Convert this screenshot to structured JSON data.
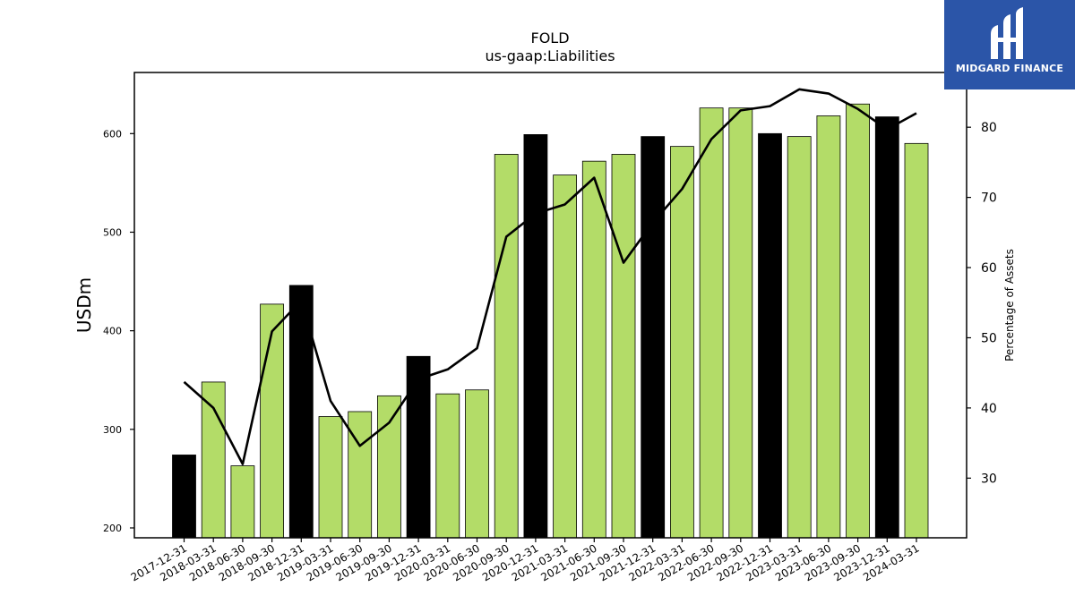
{
  "brand": {
    "name": "MIDGARD FINANCE",
    "bg_color": "#2b55a8"
  },
  "chart_data": {
    "type": "bar",
    "title": "FOLD",
    "subtitle": "us-gaap:Liabilities",
    "ylabel": "USDm",
    "y2label": "Percentage of Assets",
    "ylim": [
      190,
      662
    ],
    "y2lim": [
      21.5,
      87.8
    ],
    "yticks": [
      200,
      300,
      400,
      500,
      600
    ],
    "y2ticks": [
      30,
      40,
      50,
      60,
      70,
      80
    ],
    "grid": false,
    "colors": {
      "quarter": "#b3dc68",
      "year_end": "#000000",
      "line": "#000000"
    },
    "categories": [
      "2017-12-31",
      "2018-03-31",
      "2018-06-30",
      "2018-09-30",
      "2018-12-31",
      "2019-03-31",
      "2019-06-30",
      "2019-09-30",
      "2019-12-31",
      "2020-03-31",
      "2020-06-30",
      "2020-09-30",
      "2020-12-31",
      "2021-03-31",
      "2021-06-30",
      "2021-09-30",
      "2021-12-31",
      "2022-03-31",
      "2022-06-30",
      "2022-09-30",
      "2022-12-31",
      "2023-03-31",
      "2023-06-30",
      "2023-09-30",
      "2023-12-31",
      "2024-03-31"
    ],
    "series": [
      {
        "type": "bar",
        "values": [
          274,
          348,
          263,
          427,
          446,
          313,
          318,
          334,
          374,
          336,
          340,
          579,
          599,
          558,
          572,
          579,
          597,
          587,
          626,
          626,
          600,
          597,
          618,
          630,
          617,
          590
        ],
        "year_end": [
          true,
          false,
          false,
          false,
          true,
          false,
          false,
          false,
          true,
          false,
          false,
          false,
          true,
          false,
          false,
          false,
          true,
          false,
          false,
          false,
          true,
          false,
          false,
          false,
          true,
          false
        ]
      },
      {
        "type": "line",
        "axis": "right",
        "values": [
          43.7,
          40.0,
          32.0,
          50.9,
          55.3,
          41.0,
          34.6,
          37.9,
          44.1,
          45.5,
          48.5,
          64.4,
          67.7,
          69.0,
          72.8,
          60.7,
          66.4,
          71.2,
          78.3,
          82.4,
          83.0,
          85.4,
          84.8,
          82.6,
          79.7,
          82.0
        ]
      }
    ]
  }
}
